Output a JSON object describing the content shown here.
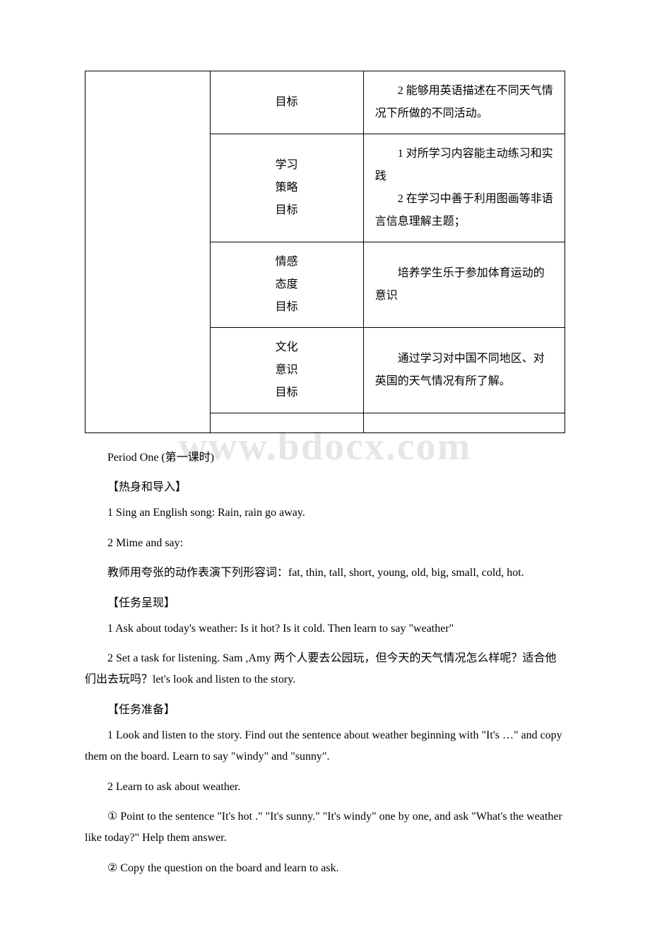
{
  "watermark": "www.bdocx.com",
  "table": {
    "rows": [
      {
        "col1": "",
        "col2": [
          "目标"
        ],
        "col3": "　　2 能够用英语描述在不同天气情况下所做的不同活动。"
      },
      {
        "col2": [
          "学习",
          "策略",
          "目标"
        ],
        "col3_lines": [
          "　　1 对所学习内容能主动练习和实践",
          "　　2 在学习中善于利用图画等非语言信息理解主题；"
        ]
      },
      {
        "col2": [
          "情感",
          "态度",
          "目标"
        ],
        "col3": "　　培养学生乐于参加体育运动的意识"
      },
      {
        "col2": [
          "文化",
          "意识",
          "目标"
        ],
        "col3": "　　通过学习对中国不同地区、对英国的天气情况有所了解。"
      }
    ]
  },
  "body": {
    "p1": "Period One (第一课时)",
    "h1": "【热身和导入】",
    "p2": "1 Sing an English song: Rain, rain go away.",
    "p3": "2 Mime and say:",
    "p4": "教师用夸张的动作表演下列形容词：fat, thin, tall, short, young, old, big, small, cold, hot.",
    "h2": "【任务呈现】",
    "p5": "1 Ask about today's weather: Is it hot? Is it cold. Then learn to say \"weather\"",
    "p6": "2 Set a task for listening. Sam ,Amy 两个人要去公园玩，但今天的天气情况怎么样呢？适合他们出去玩吗？let's look and listen to the story.",
    "h3": "【任务准备】",
    "p7": "1 Look and listen to the story. Find out the sentence about weather beginning with \"It's …\" and copy them on the board. Learn to say \"windy\" and \"sunny\".",
    "p8": "2 Learn to ask about weather.",
    "p9": "① Point to the sentence \"It's hot .\" \"It's sunny.\" \"It's windy\" one by one, and ask \"What's the weather like today?\" Help them answer.",
    "p10": "② Copy the question on the board and learn to ask."
  }
}
